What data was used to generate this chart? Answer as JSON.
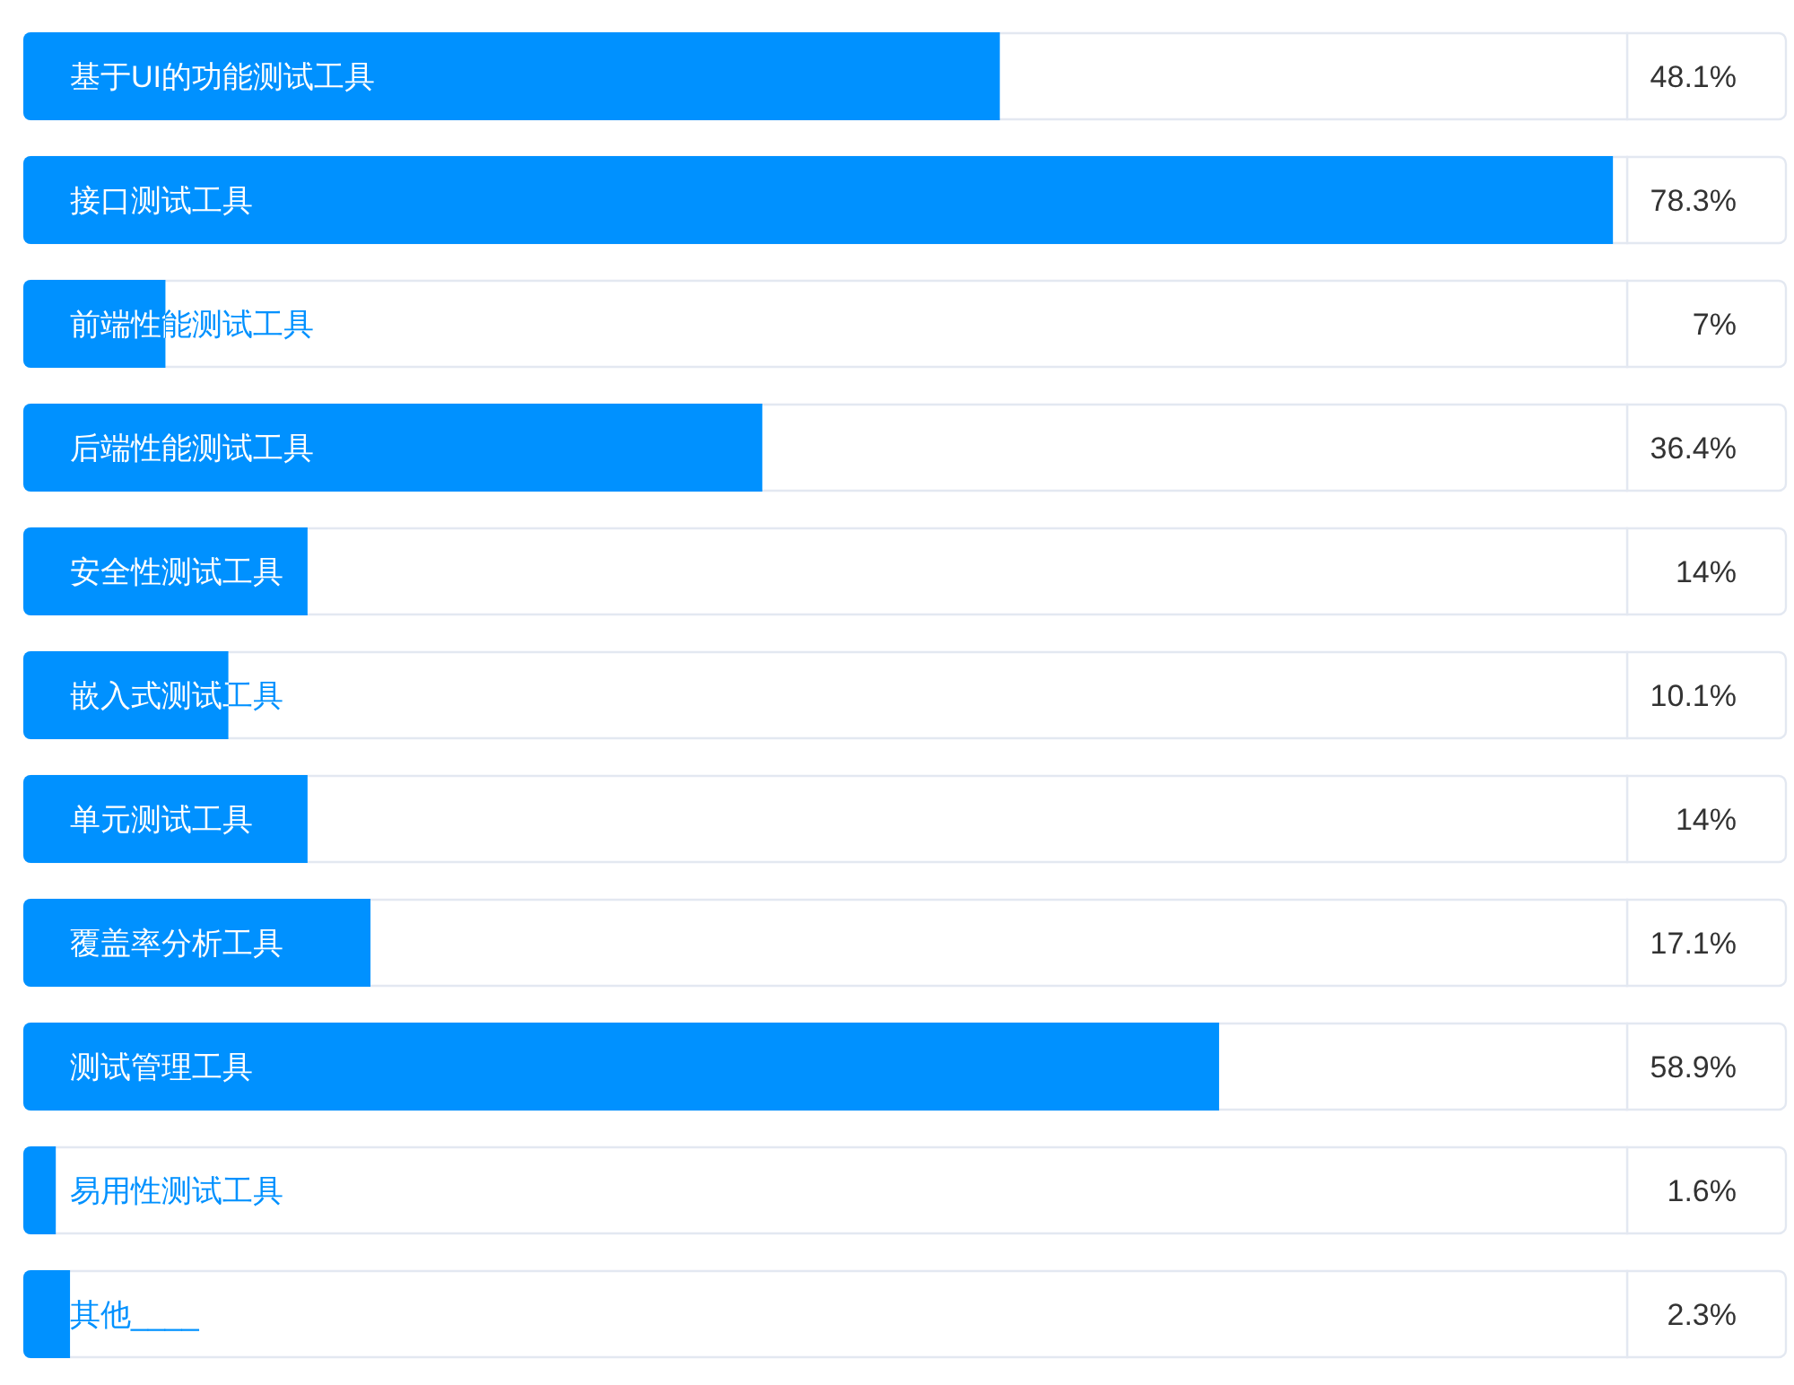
{
  "chart_data": {
    "type": "bar",
    "orientation": "horizontal",
    "categories": [
      "基于UI的功能测试工具",
      "接口测试工具",
      "前端性能测试工具",
      "后端性能测试工具",
      "安全性测试工具",
      "嵌入式测试工具",
      "单元测试工具",
      "覆盖率分析工具",
      "测试管理工具",
      "易用性测试工具",
      "其他____"
    ],
    "values": [
      48.1,
      78.3,
      7,
      36.4,
      14,
      10.1,
      14,
      17.1,
      58.9,
      1.6,
      2.3
    ],
    "value_labels": [
      "48.1%",
      "78.3%",
      "7%",
      "36.4%",
      "14%",
      "10.1%",
      "14%",
      "17.1%",
      "58.9%",
      "1.6%",
      "2.3%"
    ],
    "color": "#0091ff",
    "xlim": [
      0,
      79
    ]
  }
}
